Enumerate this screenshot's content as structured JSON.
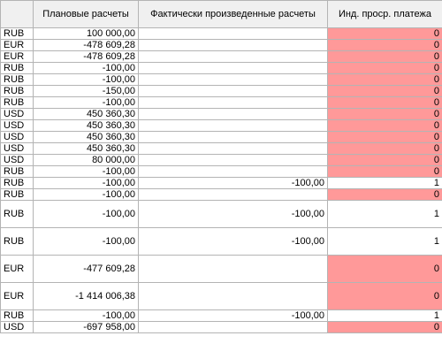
{
  "header": {
    "col_currency": "",
    "col_planned": "Плановые расчеты",
    "col_actual": "Фактически произведенные расчеты",
    "col_flag": "Инд. проср. платежа"
  },
  "colors": {
    "overdue": "#ff9999",
    "header_bg": "#f0f0f0",
    "grid": "#b4b4b4"
  },
  "rows": [
    {
      "currency": "RUB",
      "planned": "100 000,00",
      "actual": "",
      "flag": "0",
      "overdue": true,
      "h": "n"
    },
    {
      "currency": "EUR",
      "planned": "-478 609,28",
      "actual": "",
      "flag": "0",
      "overdue": true,
      "h": "n"
    },
    {
      "currency": "EUR",
      "planned": "-478 609,28",
      "actual": "",
      "flag": "0",
      "overdue": true,
      "h": "n"
    },
    {
      "currency": "RUB",
      "planned": "-100,00",
      "actual": "",
      "flag": "0",
      "overdue": true,
      "h": "n"
    },
    {
      "currency": "RUB",
      "planned": "-100,00",
      "actual": "",
      "flag": "0",
      "overdue": true,
      "h": "n"
    },
    {
      "currency": "RUB",
      "planned": "-150,00",
      "actual": "",
      "flag": "0",
      "overdue": true,
      "h": "n"
    },
    {
      "currency": "RUB",
      "planned": "-100,00",
      "actual": "",
      "flag": "0",
      "overdue": true,
      "h": "n"
    },
    {
      "currency": "USD",
      "planned": "450 360,30",
      "actual": "",
      "flag": "0",
      "overdue": true,
      "h": "n"
    },
    {
      "currency": "USD",
      "planned": "450 360,30",
      "actual": "",
      "flag": "0",
      "overdue": true,
      "h": "n"
    },
    {
      "currency": "USD",
      "planned": "450 360,30",
      "actual": "",
      "flag": "0",
      "overdue": true,
      "h": "n"
    },
    {
      "currency": "USD",
      "planned": "450 360,30",
      "actual": "",
      "flag": "0",
      "overdue": true,
      "h": "n"
    },
    {
      "currency": "USD",
      "planned": "80 000,00",
      "actual": "",
      "flag": "0",
      "overdue": true,
      "h": "n"
    },
    {
      "currency": "RUB",
      "planned": "-100,00",
      "actual": "",
      "flag": "0",
      "overdue": true,
      "h": "n"
    },
    {
      "currency": "RUB",
      "planned": "-100,00",
      "actual": "-100,00",
      "flag": "1",
      "overdue": false,
      "h": "n"
    },
    {
      "currency": "RUB",
      "planned": "-100,00",
      "actual": "",
      "flag": "0",
      "overdue": true,
      "h": "n"
    },
    {
      "currency": "RUB",
      "planned": "-100,00",
      "actual": "-100,00",
      "flag": "1",
      "overdue": false,
      "h": "t"
    },
    {
      "currency": "RUB",
      "planned": "-100,00",
      "actual": "-100,00",
      "flag": "1",
      "overdue": false,
      "h": "t"
    },
    {
      "currency": "EUR",
      "planned": "-477 609,28",
      "actual": "",
      "flag": "0",
      "overdue": true,
      "h": "t"
    },
    {
      "currency": "EUR",
      "planned": "-1 414 006,38",
      "actual": "",
      "flag": "0",
      "overdue": true,
      "h": "t"
    },
    {
      "currency": "RUB",
      "planned": "-100,00",
      "actual": "-100,00",
      "flag": "1",
      "overdue": false,
      "h": "n"
    },
    {
      "currency": "USD",
      "planned": "-697 958,00",
      "actual": "",
      "flag": "0",
      "overdue": true,
      "h": "n"
    }
  ]
}
